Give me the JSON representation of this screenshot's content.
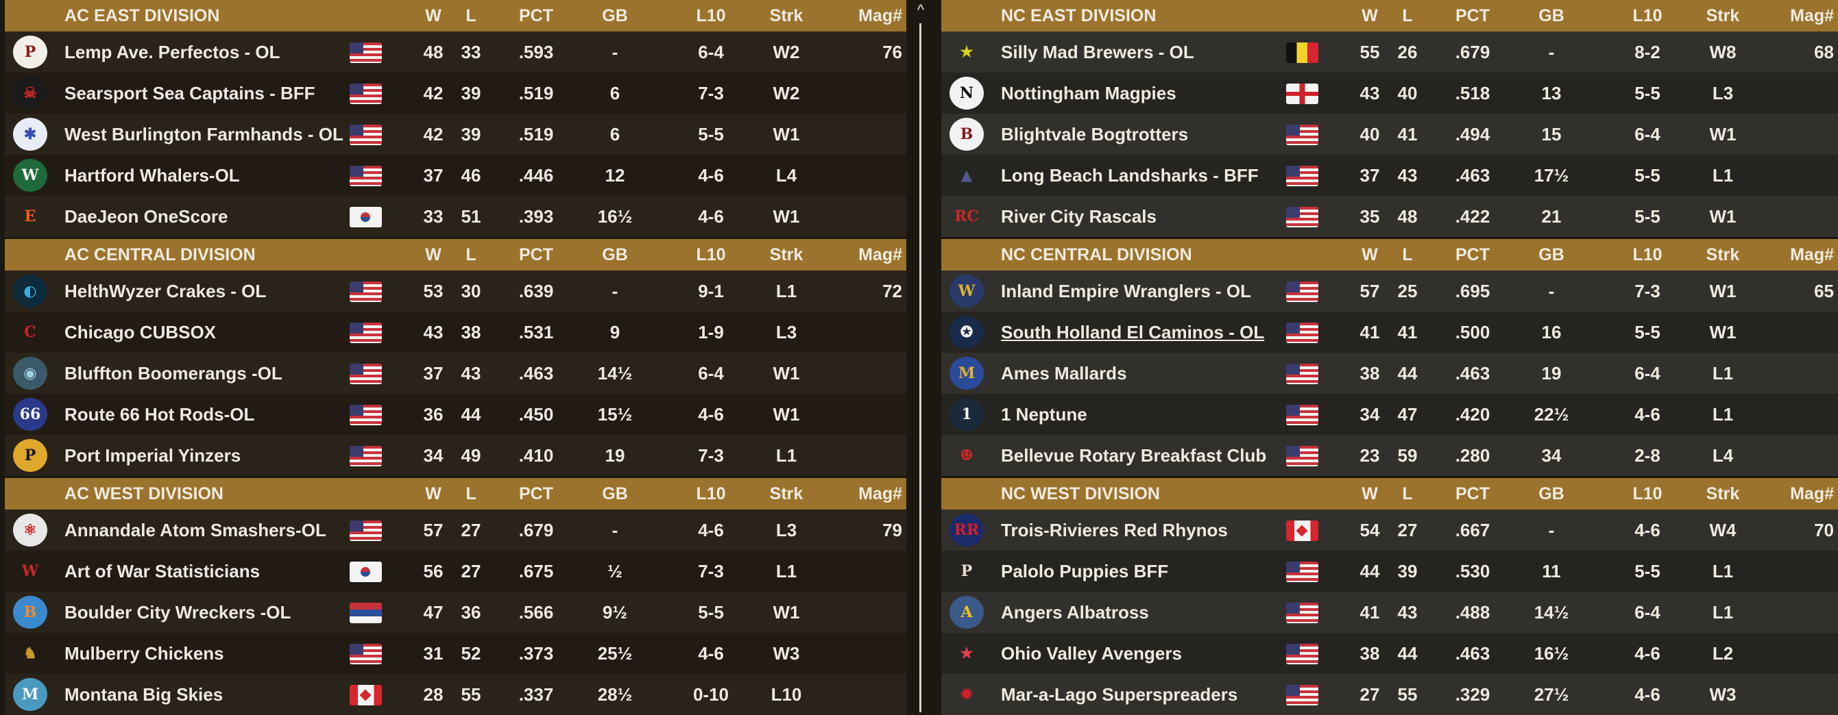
{
  "columns": {
    "w": "W",
    "l": "L",
    "pct": "PCT",
    "gb": "GB",
    "l10": "L10",
    "strk": "Strk",
    "mag": "Mag#"
  },
  "colors": {
    "header": "#9b732c",
    "text": "#efeae0"
  },
  "scrollbar": {
    "up_icon": "^"
  },
  "left": [
    {
      "title": "AC EAST DIVISION",
      "teams": [
        {
          "name": "Lemp Ave. Perfectos - OL",
          "flag": "us",
          "w": "48",
          "l": "33",
          "pct": ".593",
          "gb": "-",
          "l10": "6-4",
          "strk": "W2",
          "mag": "76",
          "logo": {
            "letter": "P",
            "bg": "#f2eee8",
            "fg": "#8c1a1a"
          }
        },
        {
          "name": "Searsport Sea Captains - BFF",
          "flag": "us",
          "w": "42",
          "l": "39",
          "pct": ".519",
          "gb": "6",
          "l10": "7-3",
          "strk": "W2",
          "mag": "",
          "logo": {
            "letter": "☠",
            "bg": "#1a1a1a",
            "fg": "#c62828"
          }
        },
        {
          "name": "West Burlington Farmhands - OL",
          "flag": "us",
          "w": "42",
          "l": "39",
          "pct": ".519",
          "gb": "6",
          "l10": "5-5",
          "strk": "W1",
          "mag": "",
          "logo": {
            "letter": "✱",
            "bg": "#e8ecf7",
            "fg": "#3a4fb0"
          }
        },
        {
          "name": "Hartford Whalers-OL",
          "flag": "us",
          "w": "37",
          "l": "46",
          "pct": ".446",
          "gb": "12",
          "l10": "4-6",
          "strk": "L4",
          "mag": "",
          "logo": {
            "letter": "W",
            "bg": "#1f6a3a",
            "fg": "#f2f2f2"
          }
        },
        {
          "name": "DaeJeon OneScore",
          "flag": "kr",
          "w": "33",
          "l": "51",
          "pct": ".393",
          "gb": "16½",
          "l10": "4-6",
          "strk": "W1",
          "mag": "",
          "logo": {
            "letter": "E",
            "bg": "transparent",
            "fg": "#f05a1a"
          }
        }
      ]
    },
    {
      "title": "AC CENTRAL DIVISION",
      "teams": [
        {
          "name": "HelthWyzer Crakes - OL",
          "flag": "us",
          "w": "53",
          "l": "30",
          "pct": ".639",
          "gb": "-",
          "l10": "9-1",
          "strk": "L1",
          "mag": "72",
          "logo": {
            "letter": "◐",
            "bg": "#0d2a3a",
            "fg": "#3ab0e0"
          }
        },
        {
          "name": "Chicago CUBSOX",
          "flag": "us",
          "w": "43",
          "l": "38",
          "pct": ".531",
          "gb": "9",
          "l10": "1-9",
          "strk": "L3",
          "mag": "",
          "logo": {
            "letter": "C",
            "bg": "transparent",
            "fg": "#d0202a"
          }
        },
        {
          "name": "Bluffton Boomerangs -OL",
          "flag": "us",
          "w": "37",
          "l": "43",
          "pct": ".463",
          "gb": "14½",
          "l10": "6-4",
          "strk": "W1",
          "mag": "",
          "logo": {
            "letter": "◉",
            "bg": "#3a5a6a",
            "fg": "#9ad0e0"
          }
        },
        {
          "name": "Route 66 Hot Rods-OL",
          "flag": "us",
          "w": "36",
          "l": "44",
          "pct": ".450",
          "gb": "15½",
          "l10": "4-6",
          "strk": "W1",
          "mag": "",
          "logo": {
            "letter": "66",
            "bg": "#2a3a8a",
            "fg": "#f2f2f2"
          }
        },
        {
          "name": "Port Imperial Yinzers",
          "flag": "us",
          "w": "34",
          "l": "49",
          "pct": ".410",
          "gb": "19",
          "l10": "7-3",
          "strk": "L1",
          "mag": "",
          "logo": {
            "letter": "P",
            "bg": "#e0a82a",
            "fg": "#1a1a1a"
          }
        }
      ]
    },
    {
      "title": "AC WEST DIVISION",
      "teams": [
        {
          "name": "Annandale Atom Smashers-OL",
          "flag": "us",
          "w": "57",
          "l": "27",
          "pct": ".679",
          "gb": "-",
          "l10": "4-6",
          "strk": "L3",
          "mag": "79",
          "logo": {
            "letter": "⚛",
            "bg": "#e8e8e8",
            "fg": "#c62828"
          }
        },
        {
          "name": "Art of War Statisticians",
          "flag": "kr",
          "w": "56",
          "l": "27",
          "pct": ".675",
          "gb": "½",
          "l10": "7-3",
          "strk": "L1",
          "mag": "",
          "logo": {
            "letter": "W",
            "bg": "transparent",
            "fg": "#c62828"
          }
        },
        {
          "name": "Boulder City Wreckers -OL",
          "flag": "rs",
          "w": "47",
          "l": "36",
          "pct": ".566",
          "gb": "9½",
          "l10": "5-5",
          "strk": "W1",
          "mag": "",
          "logo": {
            "letter": "B",
            "bg": "#3a8ad0",
            "fg": "#f08a2a"
          }
        },
        {
          "name": "Mulberry Chickens",
          "flag": "us",
          "w": "31",
          "l": "52",
          "pct": ".373",
          "gb": "25½",
          "l10": "4-6",
          "strk": "W3",
          "mag": "",
          "logo": {
            "letter": "♞",
            "bg": "transparent",
            "fg": "#c89a2a"
          }
        },
        {
          "name": "Montana Big Skies",
          "flag": "ca",
          "w": "28",
          "l": "55",
          "pct": ".337",
          "gb": "28½",
          "l10": "0-10",
          "strk": "L10",
          "mag": "",
          "logo": {
            "letter": "M",
            "bg": "#4a9ac0",
            "fg": "#f2f2f2"
          }
        }
      ]
    }
  ],
  "right": [
    {
      "title": "NC EAST DIVISION",
      "teams": [
        {
          "name": "Silly Mad Brewers - OL",
          "flag": "be",
          "w": "55",
          "l": "26",
          "pct": ".679",
          "gb": "-",
          "l10": "8-2",
          "strk": "W8",
          "mag": "68",
          "logo": {
            "letter": "★",
            "bg": "transparent",
            "fg": "#d8d020"
          }
        },
        {
          "name": "Nottingham Magpies",
          "flag": "en",
          "w": "43",
          "l": "40",
          "pct": ".518",
          "gb": "13",
          "l10": "5-5",
          "strk": "L3",
          "mag": "",
          "logo": {
            "letter": "N",
            "bg": "#f2f2f2",
            "fg": "#111"
          }
        },
        {
          "name": "Blightvale Bogtrotters",
          "flag": "us",
          "w": "40",
          "l": "41",
          "pct": ".494",
          "gb": "15",
          "l10": "6-4",
          "strk": "W1",
          "mag": "",
          "logo": {
            "letter": "B",
            "bg": "#f2f2f2",
            "fg": "#8a1a1a"
          }
        },
        {
          "name": "Long Beach Landsharks - BFF",
          "flag": "us",
          "w": "37",
          "l": "43",
          "pct": ".463",
          "gb": "17½",
          "l10": "5-5",
          "strk": "L1",
          "mag": "",
          "logo": {
            "letter": "▲",
            "bg": "transparent",
            "fg": "#4a5a8a"
          }
        },
        {
          "name": "River City Rascals",
          "flag": "us",
          "w": "35",
          "l": "48",
          "pct": ".422",
          "gb": "21",
          "l10": "5-5",
          "strk": "W1",
          "mag": "",
          "logo": {
            "letter": "RC",
            "bg": "transparent",
            "fg": "#c62828"
          }
        }
      ]
    },
    {
      "title": "NC CENTRAL DIVISION",
      "teams": [
        {
          "name": "Inland Empire Wranglers - OL",
          "flag": "us",
          "w": "57",
          "l": "25",
          "pct": ".695",
          "gb": "-",
          "l10": "7-3",
          "strk": "W1",
          "mag": "65",
          "logo": {
            "letter": "W",
            "bg": "#2a3a6a",
            "fg": "#e0b030"
          }
        },
        {
          "name": "South Holland El Caminos - OL",
          "flag": "us",
          "w": "41",
          "l": "41",
          "pct": ".500",
          "gb": "16",
          "l10": "5-5",
          "strk": "W1",
          "mag": "",
          "underline": true,
          "logo": {
            "letter": "✪",
            "bg": "#1a2a4a",
            "fg": "#f2f2f2"
          }
        },
        {
          "name": "Ames Mallards",
          "flag": "us",
          "w": "38",
          "l": "44",
          "pct": ".463",
          "gb": "19",
          "l10": "6-4",
          "strk": "L1",
          "mag": "",
          "logo": {
            "letter": "M",
            "bg": "#2a4a9a",
            "fg": "#e0b030"
          }
        },
        {
          "name": "1 Neptune",
          "flag": "us",
          "w": "34",
          "l": "47",
          "pct": ".420",
          "gb": "22½",
          "l10": "4-6",
          "strk": "L1",
          "mag": "",
          "logo": {
            "letter": "1",
            "bg": "#1a2a3a",
            "fg": "#f2f2f2"
          }
        },
        {
          "name": "Bellevue Rotary Breakfast Club",
          "flag": "us",
          "w": "23",
          "l": "59",
          "pct": ".280",
          "gb": "34",
          "l10": "2-8",
          "strk": "L4",
          "mag": "",
          "logo": {
            "letter": "☻",
            "bg": "transparent",
            "fg": "#c62828"
          }
        }
      ]
    },
    {
      "title": "NC WEST DIVISION",
      "teams": [
        {
          "name": "Trois-Rivieres Red Rhynos",
          "flag": "ca",
          "w": "54",
          "l": "27",
          "pct": ".667",
          "gb": "-",
          "l10": "4-6",
          "strk": "W4",
          "mag": "70",
          "logo": {
            "letter": "RR",
            "bg": "#1a2a6a",
            "fg": "#d0202a"
          }
        },
        {
          "name": "Palolo Puppies BFF",
          "flag": "us",
          "w": "44",
          "l": "39",
          "pct": ".530",
          "gb": "11",
          "l10": "5-5",
          "strk": "L1",
          "mag": "",
          "logo": {
            "letter": "P",
            "bg": "transparent",
            "fg": "#e8dcd0"
          }
        },
        {
          "name": "Angers Albatross",
          "flag": "us",
          "w": "41",
          "l": "43",
          "pct": ".488",
          "gb": "14½",
          "l10": "6-4",
          "strk": "L1",
          "mag": "",
          "logo": {
            "letter": "A",
            "bg": "#3a5a8a",
            "fg": "#f0c020"
          }
        },
        {
          "name": "Ohio Valley Avengers",
          "flag": "us",
          "w": "38",
          "l": "44",
          "pct": ".463",
          "gb": "16½",
          "l10": "4-6",
          "strk": "L2",
          "mag": "",
          "logo": {
            "letter": "★",
            "bg": "transparent",
            "fg": "#e04050"
          }
        },
        {
          "name": "Mar-a-Lago Superspreaders",
          "flag": "us",
          "w": "27",
          "l": "55",
          "pct": ".329",
          "gb": "27½",
          "l10": "4-6",
          "strk": "W3",
          "mag": "",
          "logo": {
            "letter": "✹",
            "bg": "transparent",
            "fg": "#d0202a"
          }
        }
      ]
    }
  ]
}
